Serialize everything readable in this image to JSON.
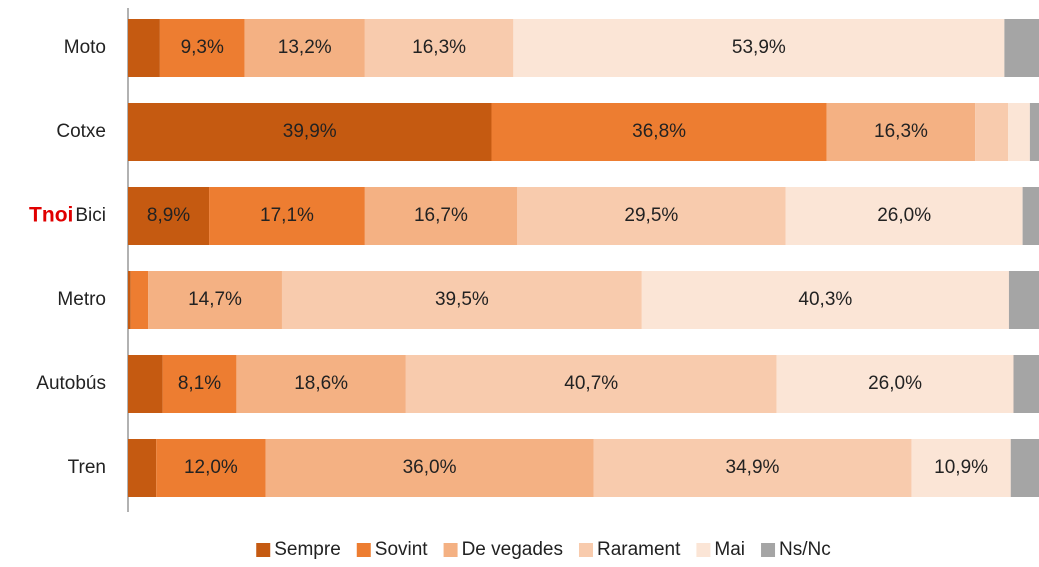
{
  "chart_data": {
    "type": "stacked_barh",
    "annotation": "Tnoi",
    "categories": [
      "Moto",
      "Cotxe",
      "Bici",
      "Metro",
      "Autobús",
      "Tren"
    ],
    "xlim": [
      0,
      100
    ],
    "legend": "bottom",
    "series": [
      {
        "name": "Sempre",
        "color": "#c55a11",
        "values": [
          3.5,
          39.9,
          8.9,
          0.3,
          3.8,
          3.1
        ],
        "value_labels": [
          null,
          "39,9%",
          "8,9%",
          null,
          null,
          null
        ]
      },
      {
        "name": "Sovint",
        "color": "#ed7d31",
        "values": [
          9.3,
          36.8,
          17.1,
          1.9,
          8.1,
          12.0
        ],
        "value_labels": [
          "9,3%",
          "36,8%",
          "17,1%",
          null,
          "8,1%",
          "12,0%"
        ]
      },
      {
        "name": "De vegades",
        "color": "#f4b183",
        "values": [
          13.2,
          16.3,
          16.7,
          14.7,
          18.6,
          36.0
        ],
        "value_labels": [
          "13,2%",
          "16,3%",
          "16,7%",
          "14,7%",
          "18,6%",
          "36,0%"
        ]
      },
      {
        "name": "Rarament",
        "color": "#f8cbad",
        "values": [
          16.3,
          3.6,
          29.5,
          39.5,
          40.7,
          34.9
        ],
        "value_labels": [
          "16,3%",
          null,
          "29,5%",
          "39,5%",
          "40,7%",
          "34,9%"
        ]
      },
      {
        "name": "Mai",
        "color": "#fbe5d6",
        "values": [
          53.9,
          2.4,
          26.0,
          40.3,
          26.0,
          10.9
        ],
        "value_labels": [
          "53,9%",
          null,
          "26,0%",
          "40,3%",
          "26,0%",
          "10,9%"
        ]
      },
      {
        "name": "Ns/Nc",
        "color": "#a5a5a5",
        "values": [
          3.8,
          1.0,
          1.8,
          3.3,
          2.8,
          3.1
        ],
        "value_labels": [
          null,
          null,
          null,
          null,
          null,
          null
        ]
      }
    ]
  }
}
